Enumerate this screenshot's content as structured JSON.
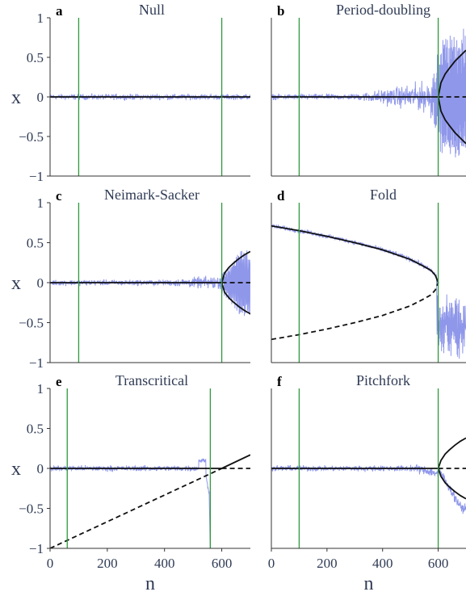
{
  "colors": {
    "noise": "#8f97ea",
    "marker": "#2e9a3a",
    "curve": "#111111",
    "axis": "#333333",
    "text": "#2f3b55"
  },
  "chart_data": [
    {
      "letter": "a",
      "title": "Null",
      "type": "line",
      "xlim": [
        0,
        700
      ],
      "ylim": [
        -1,
        1
      ],
      "yticks": [
        1,
        0.5,
        0,
        -0.5,
        -1
      ],
      "ytick_labels": [
        "1",
        "0.5",
        "0",
        "−0.5",
        "−1"
      ],
      "xticks": [],
      "xtick_labels": [],
      "ylabel": "x",
      "xlabel": "",
      "markers": [
        100,
        600
      ],
      "noise": {
        "start": 0,
        "end": 700,
        "amplitude": 0.05
      },
      "curves": [
        {
          "name": "stable",
          "style": "solid",
          "points": [
            [
              0,
              0
            ],
            [
              700,
              0
            ]
          ]
        }
      ]
    },
    {
      "letter": "b",
      "title": "Period-doubling",
      "type": "line",
      "xlim": [
        0,
        700
      ],
      "ylim": [
        -1,
        1
      ],
      "yticks": [],
      "ytick_labels": [],
      "xticks": [],
      "xtick_labels": [],
      "ylabel": "",
      "xlabel": "",
      "markers": [
        100,
        600
      ],
      "noise": {
        "start": 0,
        "end": 700,
        "amplitude": 0.05,
        "growth": "period-doubling"
      },
      "curves": [
        {
          "name": "stable",
          "style": "solid",
          "points": [
            [
              0,
              0
            ],
            [
              600,
              0
            ]
          ]
        },
        {
          "name": "unstable",
          "style": "dashed",
          "points": [
            [
              600,
              0
            ],
            [
              700,
              0
            ]
          ]
        },
        {
          "name": "upper-branch",
          "style": "solid",
          "points": [
            [
              600,
              0
            ],
            [
              610,
              0.18
            ],
            [
              625,
              0.29
            ],
            [
              640,
              0.36
            ],
            [
              660,
              0.45
            ],
            [
              680,
              0.52
            ],
            [
              700,
              0.59
            ]
          ]
        },
        {
          "name": "lower-branch",
          "style": "solid",
          "points": [
            [
              600,
              0
            ],
            [
              610,
              -0.18
            ],
            [
              625,
              -0.29
            ],
            [
              640,
              -0.36
            ],
            [
              660,
              -0.45
            ],
            [
              680,
              -0.52
            ],
            [
              700,
              -0.59
            ]
          ]
        }
      ]
    },
    {
      "letter": "c",
      "title": "Neimark-Sacker",
      "type": "line",
      "xlim": [
        0,
        700
      ],
      "ylim": [
        -1,
        1
      ],
      "yticks": [
        1,
        0.5,
        0,
        -0.5,
        -1
      ],
      "ytick_labels": [
        "1",
        "0.5",
        "0",
        "−0.5",
        "−1"
      ],
      "xticks": [],
      "xtick_labels": [],
      "ylabel": "x",
      "xlabel": "",
      "markers": [
        100,
        600
      ],
      "noise": {
        "start": 0,
        "end": 700,
        "amplitude": 0.05,
        "growth": "neimark-sacker"
      },
      "curves": [
        {
          "name": "stable",
          "style": "solid",
          "points": [
            [
              0,
              0
            ],
            [
              600,
              0
            ]
          ]
        },
        {
          "name": "unstable",
          "style": "dashed",
          "points": [
            [
              600,
              0
            ],
            [
              700,
              0
            ]
          ]
        },
        {
          "name": "upper-branch",
          "style": "solid",
          "points": [
            [
              600,
              0
            ],
            [
              610,
              0.12
            ],
            [
              625,
              0.19
            ],
            [
              640,
              0.24
            ],
            [
              660,
              0.3
            ],
            [
              680,
              0.35
            ],
            [
              700,
              0.39
            ]
          ]
        },
        {
          "name": "lower-branch",
          "style": "solid",
          "points": [
            [
              600,
              0
            ],
            [
              610,
              -0.12
            ],
            [
              625,
              -0.19
            ],
            [
              640,
              -0.24
            ],
            [
              660,
              -0.3
            ],
            [
              680,
              -0.35
            ],
            [
              700,
              -0.39
            ]
          ]
        }
      ]
    },
    {
      "letter": "d",
      "title": "Fold",
      "type": "line",
      "xlim": [
        0,
        700
      ],
      "ylim": [
        -1,
        1
      ],
      "yticks": [],
      "ytick_labels": [],
      "xticks": [],
      "xtick_labels": [],
      "ylabel": "",
      "xlabel": "",
      "markers": [
        100,
        600
      ],
      "noise": {
        "start": 0,
        "end": 700,
        "amplitude": 0.04,
        "track": "fold"
      },
      "curves": [
        {
          "name": "stable",
          "style": "solid",
          "points": [
            [
              0,
              0.71
            ],
            [
              100,
              0.65
            ],
            [
              200,
              0.58
            ],
            [
              300,
              0.5
            ],
            [
              400,
              0.41
            ],
            [
              500,
              0.29
            ],
            [
              550,
              0.2
            ],
            [
              575,
              0.15
            ],
            [
              590,
              0.09
            ],
            [
              600,
              0
            ]
          ]
        },
        {
          "name": "unstable",
          "style": "dashed",
          "points": [
            [
              0,
              -0.71
            ],
            [
              100,
              -0.65
            ],
            [
              200,
              -0.58
            ],
            [
              300,
              -0.5
            ],
            [
              400,
              -0.41
            ],
            [
              500,
              -0.29
            ],
            [
              550,
              -0.2
            ],
            [
              575,
              -0.15
            ],
            [
              590,
              -0.09
            ],
            [
              600,
              0
            ]
          ]
        }
      ]
    },
    {
      "letter": "e",
      "title": "Transcritical",
      "type": "line",
      "xlim": [
        0,
        700
      ],
      "ylim": [
        -1,
        1
      ],
      "yticks": [
        1,
        0.5,
        0,
        -0.5,
        -1
      ],
      "ytick_labels": [
        "1",
        "0.5",
        "0",
        "−0.5",
        "−1"
      ],
      "xticks": [
        0,
        200,
        400,
        600
      ],
      "xtick_labels": [
        "0",
        "200",
        "400",
        "600"
      ],
      "ylabel": "x",
      "xlabel": "n",
      "markers": [
        60,
        560
      ],
      "noise": {
        "start": 0,
        "end": 560,
        "amplitude": 0.05,
        "track": "transcritical"
      },
      "curves": [
        {
          "name": "stable",
          "style": "solid",
          "points": [
            [
              0,
              0
            ],
            [
              600,
              0
            ]
          ]
        },
        {
          "name": "unstable-after",
          "style": "dashed",
          "points": [
            [
              600,
              0
            ],
            [
              700,
              0
            ]
          ]
        },
        {
          "name": "unstable-line",
          "style": "dashed",
          "points": [
            [
              0,
              -1
            ],
            [
              600,
              0
            ]
          ]
        },
        {
          "name": "stable-line",
          "style": "solid",
          "points": [
            [
              600,
              0
            ],
            [
              700,
              0.17
            ]
          ]
        }
      ]
    },
    {
      "letter": "f",
      "title": "Pitchfork",
      "type": "line",
      "xlim": [
        0,
        700
      ],
      "ylim": [
        -1,
        1
      ],
      "yticks": [],
      "ytick_labels": [],
      "xticks": [
        0,
        200,
        400,
        600
      ],
      "xtick_labels": [
        "0",
        "200",
        "400",
        "600"
      ],
      "ylabel": "",
      "xlabel": "n",
      "markers": [
        100,
        600
      ],
      "noise": {
        "start": 0,
        "end": 700,
        "amplitude": 0.05,
        "track": "pitchfork"
      },
      "curves": [
        {
          "name": "stable",
          "style": "solid",
          "points": [
            [
              0,
              0
            ],
            [
              600,
              0
            ]
          ]
        },
        {
          "name": "unstable",
          "style": "dashed",
          "points": [
            [
              600,
              0
            ],
            [
              700,
              0
            ]
          ]
        },
        {
          "name": "upper-branch",
          "style": "solid",
          "points": [
            [
              600,
              0
            ],
            [
              610,
              0.1
            ],
            [
              625,
              0.18
            ],
            [
              640,
              0.23
            ],
            [
              660,
              0.29
            ],
            [
              680,
              0.34
            ],
            [
              700,
              0.38
            ]
          ]
        },
        {
          "name": "lower-branch",
          "style": "solid",
          "points": [
            [
              600,
              0
            ],
            [
              610,
              -0.1
            ],
            [
              625,
              -0.18
            ],
            [
              640,
              -0.23
            ],
            [
              660,
              -0.29
            ],
            [
              680,
              -0.34
            ],
            [
              700,
              -0.38
            ]
          ]
        }
      ]
    }
  ]
}
